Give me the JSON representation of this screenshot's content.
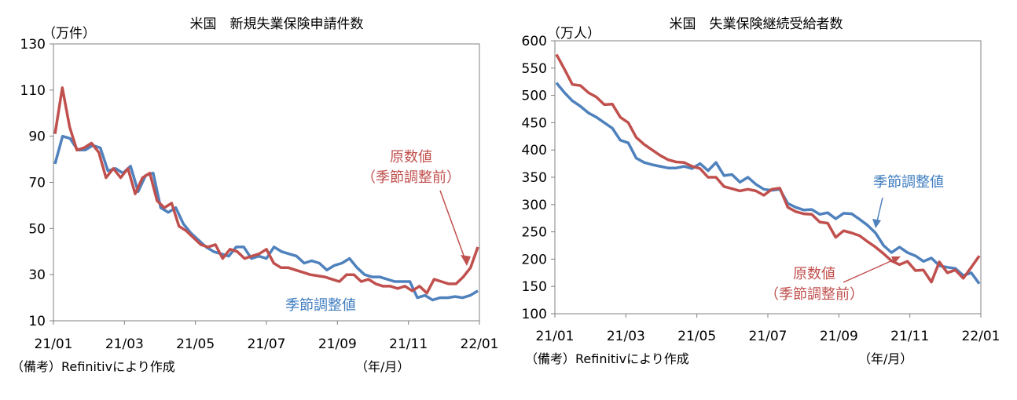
{
  "colors": {
    "nsa": "#C0504D",
    "sa": "#4F81BD",
    "axis": "#808080",
    "text": "#000000"
  },
  "chart_data": [
    {
      "type": "line",
      "title": "米国　新規失業保険申請件数",
      "unit": "（万件）",
      "ylim": [
        10,
        130
      ],
      "yticks": [
        "130",
        "110",
        "90",
        "70",
        "50",
        "30",
        "10"
      ],
      "xticks": [
        "21/01",
        "21/03",
        "21/05",
        "21/07",
        "21/09",
        "21/11",
        "22/01"
      ],
      "x_period": "（年/月）",
      "source_note": "（備考）Refinitivにより作成",
      "labels": {
        "nsa_line1": "原数値",
        "nsa_line2": "（季節調整前）",
        "sa": "季節調整値"
      },
      "series": [
        {
          "name": "原数値（季節調整前）",
          "values": [
            91,
            111,
            94,
            84,
            85,
            87,
            83,
            72,
            76,
            72,
            76,
            65,
            72,
            74,
            62,
            59,
            61,
            51,
            49,
            46,
            43,
            42,
            43,
            37,
            41,
            40,
            37,
            38,
            39,
            41,
            35,
            33,
            33,
            32,
            31,
            30,
            29.5,
            29,
            28,
            27,
            30,
            30,
            27,
            28,
            26,
            25,
            25,
            24,
            25,
            23,
            25,
            22,
            28,
            27,
            26,
            26,
            29,
            33,
            42
          ]
        },
        {
          "name": "季節調整値",
          "values": [
            78,
            90,
            89,
            84,
            84,
            86,
            85,
            75,
            76,
            74,
            77,
            66,
            73,
            74,
            59,
            57,
            59,
            52,
            48,
            45,
            42,
            40,
            39,
            38,
            42,
            42,
            37,
            38,
            37,
            42,
            40,
            39,
            38,
            35,
            36,
            35,
            32,
            34,
            35,
            37,
            33,
            30,
            29,
            29,
            28,
            27,
            27,
            27,
            20,
            21,
            19,
            20,
            20,
            20.5,
            20,
            21,
            23
          ]
        }
      ]
    },
    {
      "type": "line",
      "title": "米国　失業保険継続受給者数",
      "unit": "（万人）",
      "ylim": [
        100,
        600
      ],
      "yticks": [
        "600",
        "550",
        "500",
        "450",
        "400",
        "350",
        "300",
        "250",
        "200",
        "150",
        "100"
      ],
      "xticks": [
        "21/01",
        "21/03",
        "21/05",
        "21/07",
        "21/09",
        "21/11",
        "22/01"
      ],
      "x_period": "（年/月）",
      "source_note": "（備考）Refinitivにより作成",
      "labels": {
        "sa": "季節調整値",
        "nsa_line1": "原数値",
        "nsa_line2": "（季節調整前）"
      },
      "series": [
        {
          "name": "原数値（季節調整前）",
          "values": [
            575,
            548,
            520,
            518,
            505,
            497,
            483,
            484,
            460,
            450,
            423,
            410,
            400,
            390,
            382,
            378,
            377,
            370,
            366,
            350,
            350,
            333,
            329,
            325,
            328,
            325,
            317,
            328,
            330,
            295,
            287,
            283,
            282,
            268,
            266,
            240,
            252,
            248,
            243,
            232,
            222,
            210,
            197,
            190,
            196,
            179,
            180,
            158,
            195,
            175,
            180,
            165,
            185,
            206
          ]
        },
        {
          "name": "季節調整値",
          "values": [
            523,
            505,
            490,
            480,
            468,
            460,
            450,
            440,
            418,
            413,
            385,
            377,
            373,
            370,
            367,
            367,
            370,
            366,
            375,
            362,
            377,
            353,
            355,
            341,
            350,
            337,
            328,
            326,
            328,
            302,
            295,
            290,
            291,
            282,
            285,
            274,
            284,
            283,
            273,
            262,
            248,
            225,
            212,
            222,
            212,
            206,
            196,
            202,
            188,
            185,
            183,
            170,
            175,
            155
          ]
        }
      ]
    }
  ]
}
